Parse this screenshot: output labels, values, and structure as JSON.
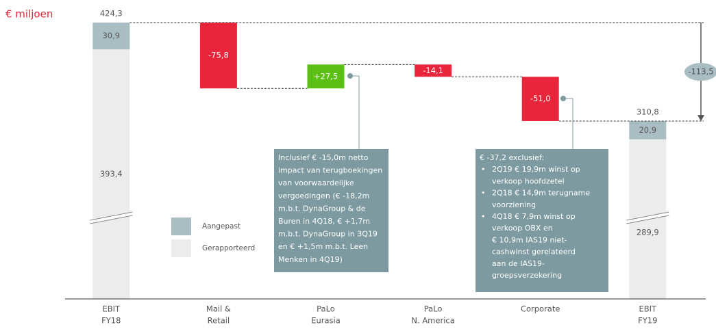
{
  "chart_data": {
    "type": "waterfall",
    "unit_label": "€ miljoen",
    "categories": [
      [
        "EBIT",
        "FY18"
      ],
      [
        "Mail &",
        "Retail"
      ],
      [
        "PaLo",
        "Eurasia"
      ],
      [
        "PaLo",
        "N. America"
      ],
      [
        "Corporate"
      ],
      [
        "EBIT",
        "FY19"
      ]
    ],
    "series": [
      {
        "name": "Gerapporteerd",
        "color": "#ececec",
        "values": [
          393.4,
          null,
          null,
          null,
          null,
          289.9
        ],
        "value_labels": [
          "393,4",
          null,
          null,
          null,
          null,
          "289,9"
        ]
      },
      {
        "name": "Aangepast",
        "color": "#a9bec3",
        "values": [
          30.9,
          null,
          null,
          null,
          null,
          20.9
        ],
        "value_labels": [
          "30,9",
          null,
          null,
          null,
          null,
          "20,9"
        ]
      }
    ],
    "totals": {
      "values": [
        424.3,
        null,
        null,
        null,
        null,
        310.8
      ],
      "value_labels": [
        "424,3",
        null,
        null,
        null,
        null,
        "310,8"
      ]
    },
    "changes": {
      "values": [
        null,
        -75.8,
        27.5,
        -14.1,
        -51.0,
        null
      ],
      "value_labels": [
        null,
        "-75,8",
        "+27,5",
        "-14,1",
        "-51,0",
        null
      ],
      "colors": [
        null,
        "#e8253b",
        "#5cbf14",
        "#e8253b",
        "#e8253b",
        null
      ]
    },
    "difference": {
      "value": -113.5,
      "label": "-113,5"
    },
    "ylim": [
      106,
      430
    ],
    "axis_break": true,
    "legend": [
      "Aangepast",
      "Gerapporteerd"
    ],
    "annotations": [
      {
        "lines": [
          "Inclusief € -15,0m netto",
          "impact van terugboekingen",
          "van voorwaardelijke",
          "vergoedingen (€ -18,2m",
          "m.b.t. DynaGroup & de",
          "Buren in 4Q18, € +1,7m",
          "m.b.t. DynaGroup in 3Q19",
          "en € +1,5m m.b.t. Leen",
          "Menken in 4Q19)"
        ]
      },
      {
        "title": "€ -37,2 exclusief:",
        "items": [
          [
            "2Q19 € 19,9m winst op",
            "verkoop hoofdzetel"
          ],
          [
            "2Q18 € 14,9m terugname",
            "voorziening"
          ],
          [
            "4Q18 € 7,9m winst op",
            "verkoop OBX en",
            "€ 10,9m IAS19 niet-",
            "cashwinst gerelateerd",
            "aan de IAS19-",
            "groepsverzekering"
          ]
        ]
      }
    ]
  }
}
